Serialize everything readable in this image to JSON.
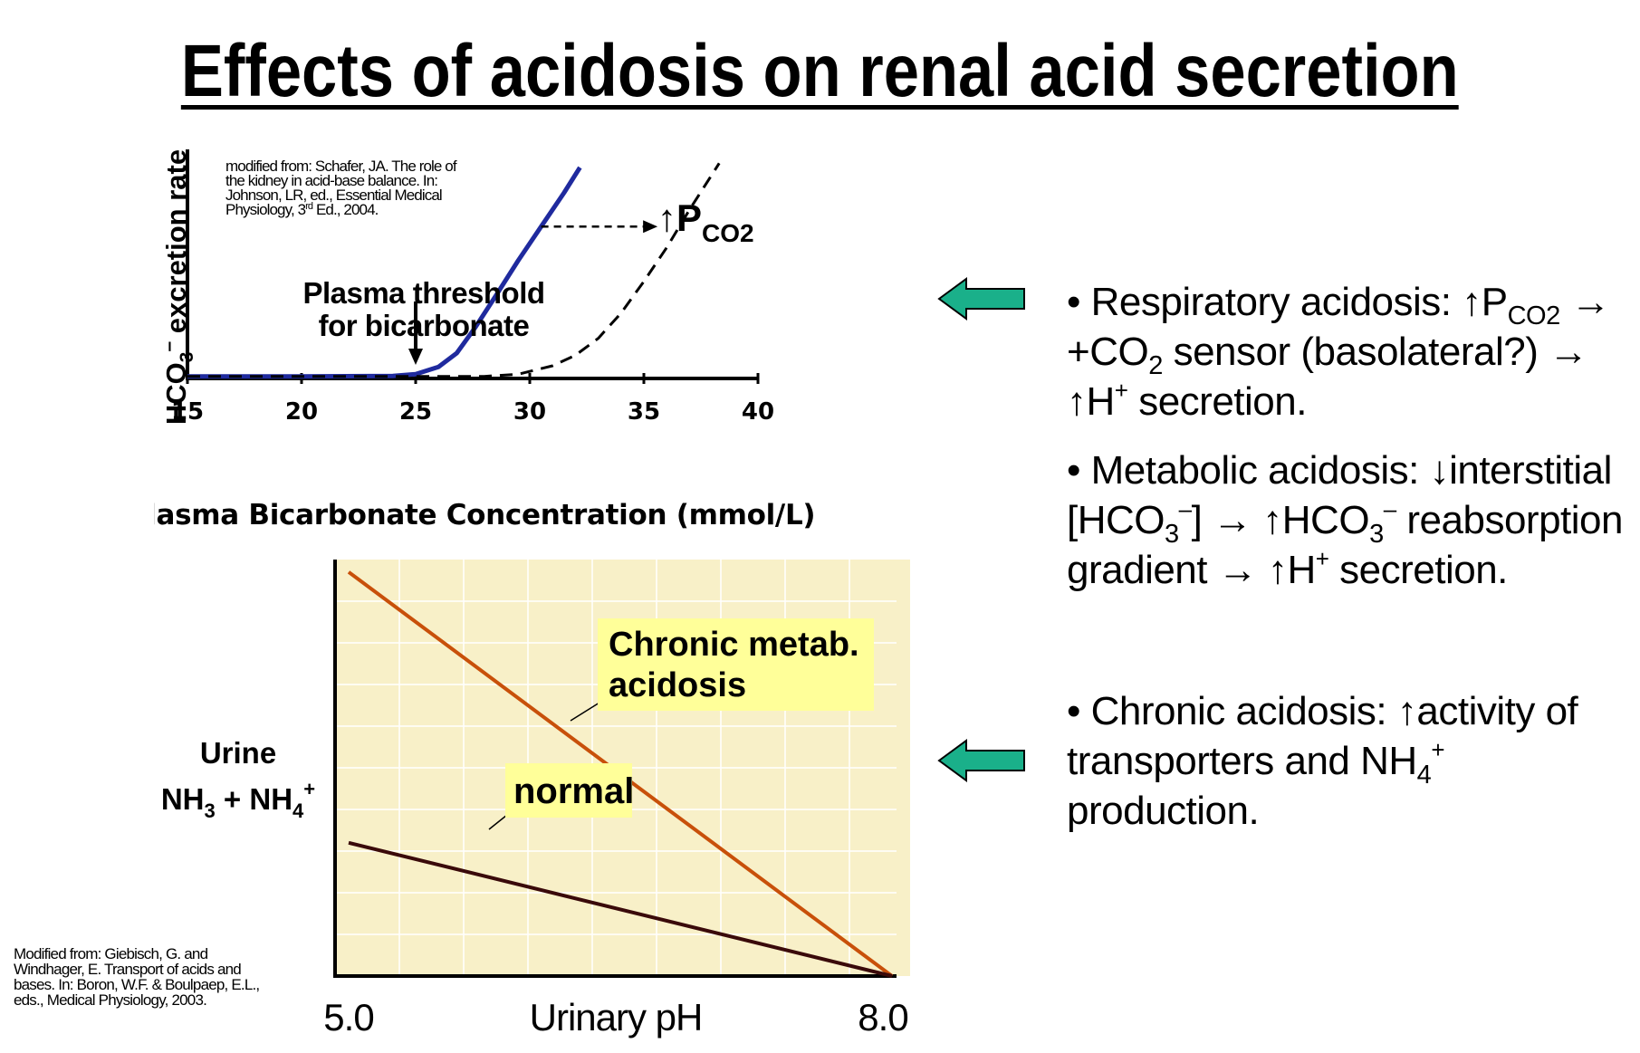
{
  "slide": {
    "title": "Effects of acidosis on renal acid secretion"
  },
  "citations": {
    "top": [
      "modified from: Schafer, JA. The role of",
      "the kidney in acid-base balance. In:",
      "Johnson, LR, ed., Essential Medical",
      "Physiology, 3",
      "rd",
      " Ed., 2004."
    ],
    "bottom": [
      "Modified from: Giebisch, G. and",
      "Windhager, E. Transport of acids and",
      "bases. In: Boron, W.F. & Boulpaep, E.L.,",
      "eds., Medical Physiology, 2003."
    ]
  },
  "chart_data": [
    {
      "type": "line",
      "xlabel": "Plasma Bicarbonate Concentration (mmol/L)",
      "ylabel": "HCO3– excretion rate",
      "ylabel_parts": [
        "HCO",
        "3",
        "–",
        " excretion rate"
      ],
      "xlim": [
        15,
        40
      ],
      "x_ticks": [
        "15",
        "20",
        "25",
        "30",
        "35",
        "40"
      ],
      "grid": false,
      "series": [
        {
          "style": "solid",
          "color": "#1f2a9e",
          "x": [
            15,
            20,
            24,
            25,
            26,
            26.8,
            27.6,
            28.5,
            29.5,
            30.5,
            31.5,
            32.2
          ],
          "y": [
            0.01,
            0.01,
            0.012,
            0.02,
            0.055,
            0.12,
            0.24,
            0.39,
            0.56,
            0.72,
            0.88,
            1.0
          ]
        },
        {
          "style": "dashed",
          "color": "#000000",
          "x": [
            15,
            25,
            28,
            29.5,
            31,
            32,
            33,
            34,
            35,
            36,
            37,
            38.3
          ],
          "y": [
            0.01,
            0.01,
            0.01,
            0.02,
            0.06,
            0.11,
            0.19,
            0.31,
            0.46,
            0.62,
            0.8,
            1.02
          ]
        }
      ],
      "annotations": {
        "threshold": [
          "Plasma threshold",
          "for bicarbonate"
        ],
        "threshold_x": 25,
        "pco2_arrow": "↑",
        "pco2_P": "P",
        "pco2_sub": "CO2",
        "shift_arrow": {
          "from_x": 30.5,
          "to_x": 35.6,
          "y": 0.72
        }
      }
    },
    {
      "type": "line",
      "xlabel": "Urinary pH",
      "ylabel_lines": [
        "Urine"
      ],
      "ylabel_line2": [
        "NH",
        "3",
        " + NH",
        "4",
        "+"
      ],
      "xlim": [
        5.0,
        8.0
      ],
      "x_ticks": [
        "5.0",
        "8.0"
      ],
      "grid": true,
      "background": "#f8f0c8",
      "series": [
        {
          "name": "Chronic metab. acidosis",
          "name_lines": [
            "Chronic metab.",
            "acidosis"
          ],
          "color": "#c8500a",
          "x": [
            5.0,
            8.0
          ],
          "y": [
            0.97,
            0.0
          ]
        },
        {
          "name": "normal",
          "name_lines": [
            "normal"
          ],
          "color": "#3a0a0a",
          "x": [
            5.0,
            8.0
          ],
          "y": [
            0.32,
            0.0
          ]
        }
      ],
      "label_box_color": "#ffff99"
    }
  ],
  "bullets": [
    {
      "id": "respiratory",
      "parts": [
        "• Respiratory acidosis: ↑P",
        "CO2",
        " → +CO",
        "2",
        " sensor (basolateral?) → ↑H",
        "+",
        " secretion."
      ]
    },
    {
      "id": "metabolic",
      "parts": [
        "• Metabolic acidosis: ↓interstitial [HCO",
        "3",
        "–",
        "] → ↑HCO",
        "3",
        "–",
        " reabsorption gradient → ↑H",
        "+",
        " secretion."
      ]
    },
    {
      "id": "chronic",
      "parts": [
        "• Chronic acidosis: ↑activity of transporters and NH",
        "4",
        "+",
        " production."
      ]
    }
  ],
  "arrows": {
    "color": "#1ab08a"
  }
}
